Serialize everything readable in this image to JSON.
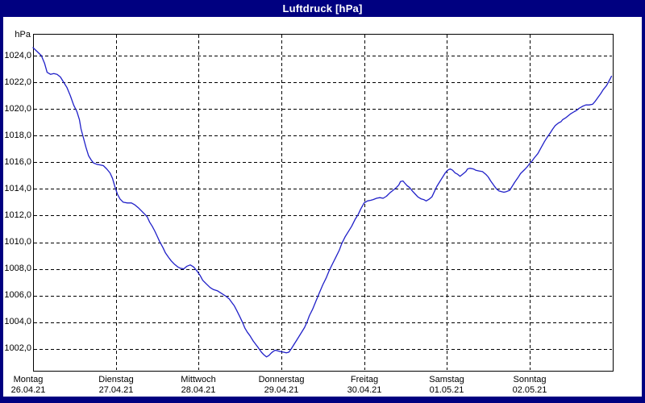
{
  "window": {
    "title": "Luftdruck [hPa]"
  },
  "colors": {
    "frame": "#000080",
    "titlebar_bg": "#000080",
    "titlebar_text": "#ffffff",
    "plot_bg": "#ffffff",
    "grid": "#000000",
    "curve": "#2020c8"
  },
  "chart_data": {
    "type": "line",
    "title": "Luftdruck [hPa]",
    "xlabel": "",
    "ylabel": "hPa",
    "ylim": [
      1000.4,
      1025.6
    ],
    "xlim_days": [
      0,
      7
    ],
    "grid": "dashed-both-axes",
    "legend_position": "none",
    "yticks": [
      1024,
      1022,
      1020,
      1018,
      1016,
      1014,
      1012,
      1010,
      1008,
      1006,
      1004,
      1002
    ],
    "ytick_labels": [
      "1024,0",
      "1022,0",
      "1020,0",
      "1018,0",
      "1016,0",
      "1014,0",
      "1012,0",
      "1010,0",
      "1008,0",
      "1006,0",
      "1004,0",
      "1002,0"
    ],
    "xticks": [
      {
        "day": "Montag",
        "date": "26.04.21"
      },
      {
        "day": "Dienstag",
        "date": "27.04.21"
      },
      {
        "day": "Mittwoch",
        "date": "28.04.21"
      },
      {
        "day": "Donnerstag",
        "date": "29.04.21"
      },
      {
        "day": "Freitag",
        "date": "30.04.21"
      },
      {
        "day": "Samstag",
        "date": "01.05.21"
      },
      {
        "day": "Sonntag",
        "date": "02.05.21"
      }
    ],
    "series": [
      {
        "name": "Luftdruck",
        "color": "#2020c8",
        "x_unit": "days_since_monday_00h",
        "y_unit": "hPa",
        "points": [
          [
            0,
            1024.6
          ],
          [
            0.05,
            1024.3
          ],
          [
            0.1,
            1024
          ],
          [
            0.14,
            1023.4
          ],
          [
            0.17,
            1022.75
          ],
          [
            0.21,
            1022.6
          ],
          [
            0.25,
            1022.65
          ],
          [
            0.29,
            1022.6
          ],
          [
            0.33,
            1022.4
          ],
          [
            0.37,
            1022
          ],
          [
            0.41,
            1021.6
          ],
          [
            0.45,
            1021
          ],
          [
            0.49,
            1020.3
          ],
          [
            0.53,
            1019.8
          ],
          [
            0.56,
            1019.2
          ],
          [
            0.58,
            1018.5
          ],
          [
            0.61,
            1017.8
          ],
          [
            0.64,
            1017.1
          ],
          [
            0.67,
            1016.5
          ],
          [
            0.7,
            1016.2
          ],
          [
            0.73,
            1015.95
          ],
          [
            0.77,
            1015.85
          ],
          [
            0.81,
            1015.8
          ],
          [
            0.85,
            1015.75
          ],
          [
            0.89,
            1015.5
          ],
          [
            0.93,
            1015.2
          ],
          [
            0.96,
            1014.8
          ],
          [
            0.99,
            1014.15
          ],
          [
            1.02,
            1013.6
          ],
          [
            1.05,
            1013.25
          ],
          [
            1.09,
            1013
          ],
          [
            1.14,
            1012.95
          ],
          [
            1.19,
            1012.95
          ],
          [
            1.23,
            1012.8
          ],
          [
            1.27,
            1012.6
          ],
          [
            1.31,
            1012.35
          ],
          [
            1.35,
            1012.1
          ],
          [
            1.38,
            1011.9
          ],
          [
            1.41,
            1011.5
          ],
          [
            1.44,
            1011.2
          ],
          [
            1.47,
            1010.85
          ],
          [
            1.5,
            1010.45
          ],
          [
            1.53,
            1010.05
          ],
          [
            1.57,
            1009.6
          ],
          [
            1.6,
            1009.2
          ],
          [
            1.64,
            1008.85
          ],
          [
            1.67,
            1008.6
          ],
          [
            1.71,
            1008.35
          ],
          [
            1.75,
            1008.15
          ],
          [
            1.78,
            1008.05
          ],
          [
            1.82,
            1008
          ],
          [
            1.86,
            1008.2
          ],
          [
            1.9,
            1008.3
          ],
          [
            1.94,
            1008.15
          ],
          [
            1.98,
            1007.85
          ],
          [
            2.02,
            1007.5
          ],
          [
            2.05,
            1007.15
          ],
          [
            2.09,
            1006.9
          ],
          [
            2.14,
            1006.6
          ],
          [
            2.18,
            1006.45
          ],
          [
            2.23,
            1006.35
          ],
          [
            2.28,
            1006.15
          ],
          [
            2.33,
            1005.95
          ],
          [
            2.37,
            1005.75
          ],
          [
            2.4,
            1005.5
          ],
          [
            2.43,
            1005.25
          ],
          [
            2.46,
            1004.9
          ],
          [
            2.5,
            1004.4
          ],
          [
            2.53,
            1004
          ],
          [
            2.56,
            1003.55
          ],
          [
            2.59,
            1003.25
          ],
          [
            2.62,
            1003
          ],
          [
            2.66,
            1002.6
          ],
          [
            2.69,
            1002.35
          ],
          [
            2.72,
            1002.1
          ],
          [
            2.76,
            1001.75
          ],
          [
            2.79,
            1001.55
          ],
          [
            2.82,
            1001.4
          ],
          [
            2.85,
            1001.5
          ],
          [
            2.88,
            1001.7
          ],
          [
            2.91,
            1001.85
          ],
          [
            2.93,
            1001.9
          ],
          [
            2.96,
            1001.85
          ],
          [
            2.99,
            1001.8
          ],
          [
            3.03,
            1001.75
          ],
          [
            3.06,
            1001.7
          ],
          [
            3.09,
            1001.75
          ],
          [
            3.12,
            1002
          ],
          [
            3.15,
            1002.3
          ],
          [
            3.18,
            1002.6
          ],
          [
            3.21,
            1002.9
          ],
          [
            3.24,
            1003.2
          ],
          [
            3.28,
            1003.6
          ],
          [
            3.31,
            1004
          ],
          [
            3.34,
            1004.5
          ],
          [
            3.38,
            1005
          ],
          [
            3.42,
            1005.6
          ],
          [
            3.46,
            1006.2
          ],
          [
            3.5,
            1006.8
          ],
          [
            3.54,
            1007.3
          ],
          [
            3.58,
            1007.9
          ],
          [
            3.62,
            1008.4
          ],
          [
            3.66,
            1008.9
          ],
          [
            3.7,
            1009.4
          ],
          [
            3.73,
            1009.9
          ],
          [
            3.77,
            1010.4
          ],
          [
            3.81,
            1010.8
          ],
          [
            3.85,
            1011.2
          ],
          [
            3.89,
            1011.7
          ],
          [
            3.93,
            1012.1
          ],
          [
            3.96,
            1012.5
          ],
          [
            4,
            1012.95
          ],
          [
            4.04,
            1013.1
          ],
          [
            4.08,
            1013.15
          ],
          [
            4.11,
            1013.2
          ],
          [
            4.15,
            1013.3
          ],
          [
            4.19,
            1013.35
          ],
          [
            4.23,
            1013.3
          ],
          [
            4.27,
            1013.45
          ],
          [
            4.31,
            1013.7
          ],
          [
            4.35,
            1013.9
          ],
          [
            4.39,
            1014.1
          ],
          [
            4.42,
            1014.3
          ],
          [
            4.44,
            1014.55
          ],
          [
            4.47,
            1014.6
          ],
          [
            4.49,
            1014.45
          ],
          [
            4.52,
            1014.25
          ],
          [
            4.55,
            1014.1
          ],
          [
            4.59,
            1013.8
          ],
          [
            4.62,
            1013.6
          ],
          [
            4.65,
            1013.4
          ],
          [
            4.69,
            1013.25
          ],
          [
            4.72,
            1013.2
          ],
          [
            4.75,
            1013.1
          ],
          [
            4.79,
            1013.25
          ],
          [
            4.82,
            1013.4
          ],
          [
            4.85,
            1013.8
          ],
          [
            4.88,
            1014.2
          ],
          [
            4.91,
            1014.5
          ],
          [
            4.94,
            1014.8
          ],
          [
            4.98,
            1015.2
          ],
          [
            5.01,
            1015.4
          ],
          [
            5.04,
            1015.5
          ],
          [
            5.07,
            1015.4
          ],
          [
            5.1,
            1015.2
          ],
          [
            5.13,
            1015.1
          ],
          [
            5.16,
            1014.95
          ],
          [
            5.19,
            1015.1
          ],
          [
            5.23,
            1015.3
          ],
          [
            5.25,
            1015.5
          ],
          [
            5.28,
            1015.55
          ],
          [
            5.32,
            1015.5
          ],
          [
            5.35,
            1015.4
          ],
          [
            5.39,
            1015.35
          ],
          [
            5.43,
            1015.3
          ],
          [
            5.47,
            1015.1
          ],
          [
            5.5,
            1014.9
          ],
          [
            5.53,
            1014.6
          ],
          [
            5.57,
            1014.25
          ],
          [
            5.6,
            1014
          ],
          [
            5.63,
            1013.85
          ],
          [
            5.66,
            1013.8
          ],
          [
            5.69,
            1013.75
          ],
          [
            5.72,
            1013.8
          ],
          [
            5.76,
            1013.9
          ],
          [
            5.79,
            1014.2
          ],
          [
            5.82,
            1014.5
          ],
          [
            5.86,
            1014.85
          ],
          [
            5.89,
            1015.15
          ],
          [
            5.94,
            1015.45
          ],
          [
            5.97,
            1015.65
          ],
          [
            6,
            1015.9
          ],
          [
            6.03,
            1016.1
          ],
          [
            6.06,
            1016.35
          ],
          [
            6.1,
            1016.65
          ],
          [
            6.14,
            1017.1
          ],
          [
            6.18,
            1017.55
          ],
          [
            6.21,
            1017.85
          ],
          [
            6.25,
            1018.2
          ],
          [
            6.28,
            1018.5
          ],
          [
            6.31,
            1018.75
          ],
          [
            6.35,
            1018.95
          ],
          [
            6.38,
            1019.05
          ],
          [
            6.4,
            1019.2
          ],
          [
            6.44,
            1019.35
          ],
          [
            6.47,
            1019.5
          ],
          [
            6.5,
            1019.65
          ],
          [
            6.54,
            1019.8
          ],
          [
            6.57,
            1019.9
          ],
          [
            6.6,
            1020.05
          ],
          [
            6.64,
            1020.2
          ],
          [
            6.68,
            1020.3
          ],
          [
            6.72,
            1020.3
          ],
          [
            6.76,
            1020.35
          ],
          [
            6.79,
            1020.55
          ],
          [
            6.83,
            1020.9
          ],
          [
            6.86,
            1021.15
          ],
          [
            6.89,
            1021.45
          ],
          [
            6.93,
            1021.75
          ],
          [
            6.96,
            1022.1
          ],
          [
            6.99,
            1022.45
          ]
        ]
      }
    ]
  }
}
